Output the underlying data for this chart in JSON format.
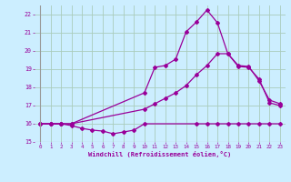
{
  "xlabel": "Windchill (Refroidissement éolien,°C)",
  "background_color": "#cceeff",
  "grid_color": "#aaccbb",
  "line_color": "#990099",
  "xlim": [
    -0.5,
    23.5
  ],
  "ylim": [
    15,
    22.5
  ],
  "xticks": [
    0,
    1,
    2,
    3,
    4,
    5,
    6,
    7,
    8,
    9,
    10,
    11,
    12,
    13,
    14,
    15,
    16,
    17,
    18,
    19,
    20,
    21,
    22,
    23
  ],
  "yticks": [
    15,
    16,
    17,
    18,
    19,
    20,
    21,
    22
  ],
  "line1_x": [
    0,
    1,
    2,
    3,
    4,
    5,
    6,
    7,
    8,
    9,
    10,
    15,
    16,
    17,
    18,
    19,
    20,
    21,
    22,
    23
  ],
  "line1_y": [
    16.0,
    16.0,
    16.0,
    15.9,
    15.75,
    15.65,
    15.6,
    15.45,
    15.55,
    15.65,
    16.0,
    16.0,
    16.0,
    16.0,
    16.0,
    16.0,
    16.0,
    16.0,
    16.0,
    16.0
  ],
  "line2_x": [
    0,
    1,
    2,
    3,
    10,
    11,
    12,
    13,
    14,
    15,
    16,
    17,
    18,
    19,
    20,
    21,
    22,
    23
  ],
  "line2_y": [
    16.0,
    16.0,
    16.0,
    16.0,
    16.8,
    17.1,
    17.4,
    17.7,
    18.1,
    18.7,
    19.2,
    19.85,
    19.85,
    19.15,
    19.1,
    18.45,
    17.15,
    17.0
  ],
  "line3_x": [
    0,
    1,
    2,
    3,
    10,
    11,
    12,
    13,
    14,
    15,
    16,
    17,
    18,
    19,
    20,
    21,
    22,
    23
  ],
  "line3_y": [
    16.0,
    16.0,
    16.0,
    16.0,
    17.7,
    19.1,
    19.2,
    19.55,
    21.05,
    21.6,
    22.25,
    21.55,
    19.85,
    19.2,
    19.15,
    18.35,
    17.3,
    17.1
  ]
}
